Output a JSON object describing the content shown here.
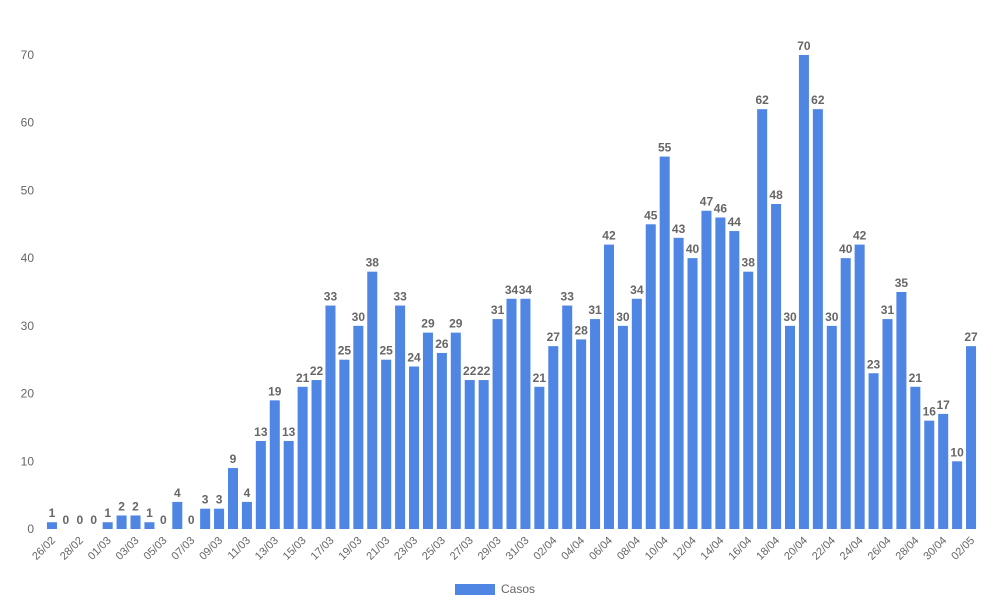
{
  "chart_data": {
    "type": "bar",
    "categories": [
      "26/02",
      "27/02",
      "28/02",
      "29/02",
      "01/03",
      "02/03",
      "03/03",
      "04/03",
      "05/03",
      "06/03",
      "07/03",
      "08/03",
      "09/03",
      "10/03",
      "11/03",
      "12/03",
      "13/03",
      "14/03",
      "15/03",
      "16/03",
      "17/03",
      "18/03",
      "19/03",
      "20/03",
      "21/03",
      "22/03",
      "23/03",
      "24/03",
      "25/03",
      "26/03",
      "27/03",
      "28/03",
      "29/03",
      "30/03",
      "31/03",
      "01/04",
      "02/04",
      "03/04",
      "04/04",
      "05/04",
      "06/04",
      "07/04",
      "08/04",
      "09/04",
      "10/04",
      "11/04",
      "12/04",
      "13/04",
      "14/04",
      "15/04",
      "16/04",
      "17/04",
      "18/04",
      "19/04",
      "20/04",
      "21/04",
      "22/04",
      "23/04",
      "24/04",
      "25/04",
      "26/04",
      "27/04",
      "28/04",
      "29/04",
      "30/04",
      "01/05",
      "02/05"
    ],
    "tick_labels_shown": [
      "26/02",
      "28/02",
      "01/03",
      "03/03",
      "05/03",
      "07/03",
      "09/03",
      "11/03",
      "13/03",
      "15/03",
      "17/03",
      "19/03",
      "21/03",
      "23/03",
      "25/03",
      "27/03",
      "29/03",
      "31/03",
      "02/04",
      "04/04",
      "06/04",
      "08/04",
      "10/04",
      "12/04",
      "14/04",
      "16/04",
      "18/04",
      "20/04",
      "22/04",
      "24/04",
      "26/04",
      "28/04",
      "30/04",
      "02/05"
    ],
    "series": [
      {
        "name": "Casos",
        "values": [
          1,
          0,
          0,
          0,
          1,
          2,
          2,
          1,
          0,
          4,
          0,
          3,
          3,
          9,
          4,
          13,
          19,
          13,
          21,
          22,
          33,
          25,
          30,
          38,
          25,
          33,
          24,
          29,
          26,
          29,
          22,
          22,
          31,
          34,
          34,
          21,
          27,
          33,
          28,
          31,
          42,
          30,
          34,
          45,
          55,
          43,
          40,
          47,
          46,
          44,
          38,
          62,
          48,
          30,
          70,
          62,
          30,
          40,
          42,
          23,
          31,
          35,
          21,
          16,
          17,
          10,
          27
        ]
      }
    ],
    "ylim": [
      0,
      70
    ],
    "yticks": [
      0,
      10,
      20,
      30,
      40,
      50,
      60,
      70
    ],
    "grid": false,
    "legend_position": "bottom-center",
    "bar_color": "#4f86e4",
    "text_color": "#666666"
  }
}
